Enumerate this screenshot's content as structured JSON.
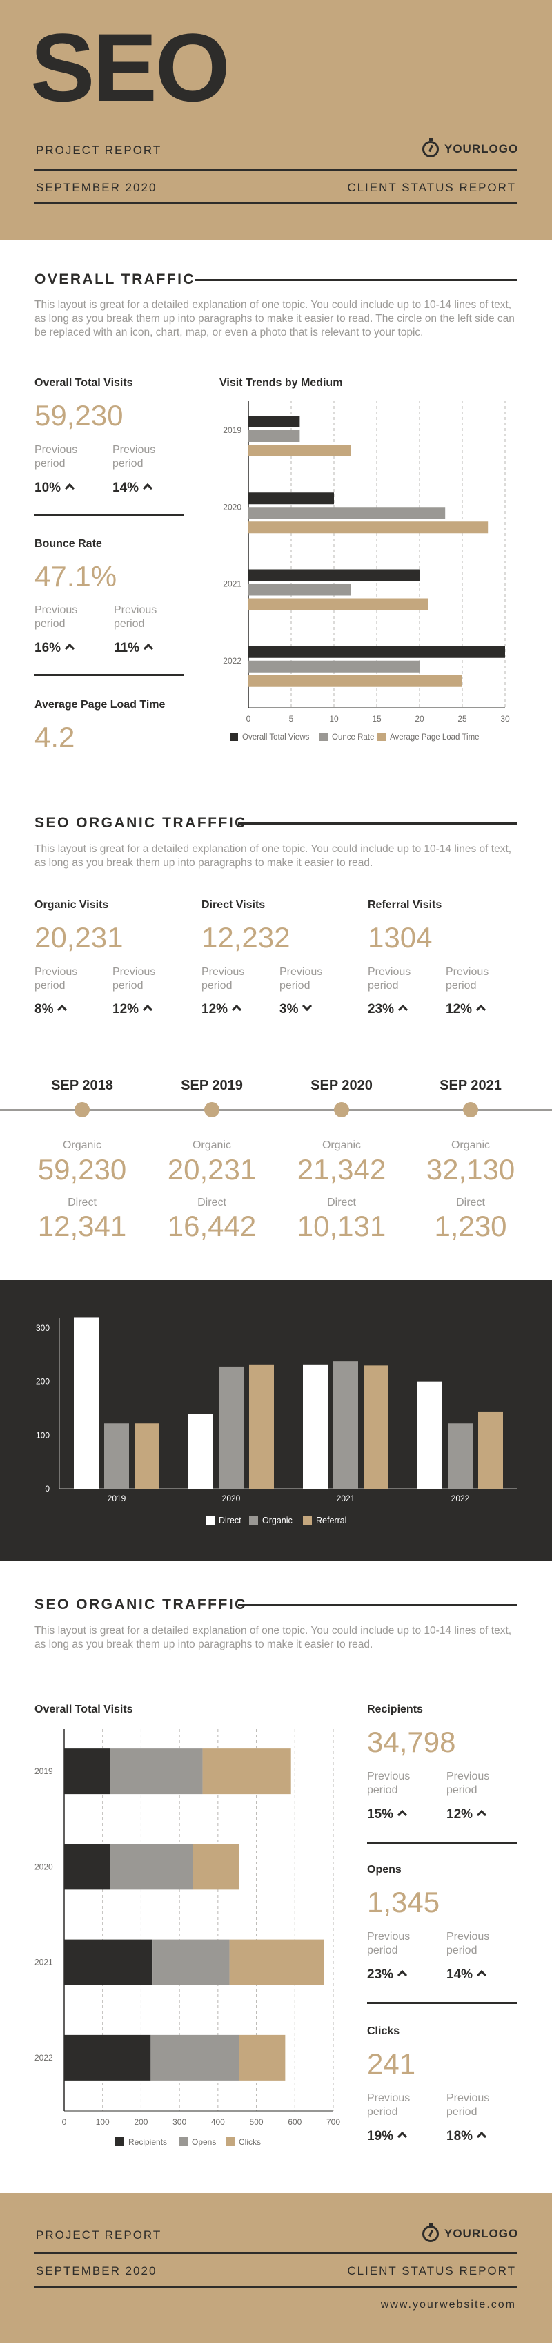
{
  "header": {
    "title": "SEO",
    "project_report": "PROJECT REPORT",
    "logo": "YOURLOGO",
    "date": "SEPTEMBER 2020",
    "client_report": "CLIENT STATUS REPORT"
  },
  "section1": {
    "title": "OVERALL TRAFFIC",
    "description": "This layout is great for a detailed explanation of one topic. You could include up to 10-14 lines of text, as long as you break them up into paragraphs to make it easier to read. The circle on the left side can be replaced with an icon, chart, map, or even a photo that is relevant to your topic.",
    "total_visits": {
      "label": "Overall Total Visits",
      "value": "59,230",
      "prev1": "Previous period",
      "pct1": "10%",
      "prev2": "Previous period",
      "pct2": "14%"
    },
    "bounce_rate": {
      "label": "Bounce Rate",
      "value": "47.1%",
      "prev1": "Previous period",
      "pct1": "16%",
      "prev2": "Previous period",
      "pct2": "11%"
    },
    "load_time": {
      "label": "Average Page Load Time",
      "value": "4.2"
    },
    "chart_title": "Visit Trends by Medium"
  },
  "section2": {
    "title": "SEO ORGANIC TRAFFFIC",
    "description": "This layout is great for a detailed explanation of one topic. You could include up to 10-14 lines of text, as long as you break them up into paragraphs to make it easier to read.",
    "cards": [
      {
        "label": "Organic Visits",
        "value": "20,231",
        "prev1": "Previous period",
        "pct1": "8%",
        "dir1": "up",
        "prev2": "Previous period",
        "pct2": "12%",
        "dir2": "up"
      },
      {
        "label": "Direct Visits",
        "value": "12,232",
        "prev1": "Previous period",
        "pct1": "12%",
        "dir1": "up",
        "prev2": "Previous period",
        "pct2": "3%",
        "dir2": "down"
      },
      {
        "label": "Referral Visits",
        "value": "1304",
        "prev1": "Previous period",
        "pct1": "23%",
        "dir1": "up",
        "prev2": "Previous period",
        "pct2": "12%",
        "dir2": "up"
      }
    ]
  },
  "timeline": [
    {
      "date": "SEP 2018",
      "organic_label": "Organic",
      "organic": "59,230",
      "direct_label": "Direct",
      "direct": "12,341"
    },
    {
      "date": "SEP 2019",
      "organic_label": "Organic",
      "organic": "20,231",
      "direct_label": "Direct",
      "direct": "16,442"
    },
    {
      "date": "SEP 2020",
      "organic_label": "Organic",
      "organic": "21,342",
      "direct_label": "Direct",
      "direct": "10,131"
    },
    {
      "date": "SEP 2021",
      "organic_label": "Organic",
      "organic": "32,130",
      "direct_label": "Direct",
      "direct": "1,230"
    }
  ],
  "section3": {
    "title": "SEO ORGANIC TRAFFFIC",
    "description": "This layout is great for a detailed explanation of one topic. You could include up to 10-14 lines of text, as long as you break them up into paragraphs to make it easier to read.",
    "chart_title": "Overall Total Visits",
    "recipients": {
      "label": "Recipients",
      "value": "34,798",
      "prev1": "Previous period",
      "pct1": "15%",
      "prev2": "Previous period",
      "pct2": "12%"
    },
    "opens": {
      "label": "Opens",
      "value": "1,345",
      "prev1": "Previous period",
      "pct1": "23%",
      "prev2": "Previous period",
      "pct2": "14%"
    },
    "clicks": {
      "label": "Clicks",
      "value": "241",
      "prev1": "Previous period",
      "pct1": "19%",
      "prev2": "Previous period",
      "pct2": "18%"
    }
  },
  "footer": {
    "project_report": "PROJECT REPORT",
    "logo": "YOURLOGO",
    "date": "SEPTEMBER 2020",
    "client_report": "CLIENT STATUS REPORT",
    "website": "www.yourwebsite.com"
  },
  "colors": {
    "dark": "#2d2c2a",
    "grey": "#9a9894",
    "tan": "#c4a77e",
    "white": "#ffffff"
  },
  "chart_data": [
    {
      "type": "bar",
      "orientation": "horizontal",
      "title": "Visit Trends by Medium",
      "categories": [
        "2019",
        "2020",
        "2021",
        "2022"
      ],
      "series": [
        {
          "name": "Overall Total Views",
          "values": [
            6,
            10,
            20,
            30
          ]
        },
        {
          "name": "Ounce Rate",
          "values": [
            6,
            23,
            12,
            20
          ]
        },
        {
          "name": "Average Page Load Time",
          "values": [
            12,
            28,
            21,
            25
          ]
        }
      ],
      "xlim": [
        0,
        30
      ],
      "xticks": [
        0,
        5,
        10,
        15,
        20,
        25,
        30
      ],
      "legend": "bottom",
      "grid": "vertical dashed"
    },
    {
      "type": "bar",
      "categories": [
        "2019",
        "2020",
        "2021",
        "2022"
      ],
      "series": [
        {
          "name": "Direct",
          "values": [
            320,
            140,
            232,
            200
          ]
        },
        {
          "name": "Organic",
          "values": [
            122,
            228,
            238,
            122
          ]
        },
        {
          "name": "Referral",
          "values": [
            122,
            232,
            230,
            143
          ]
        }
      ],
      "ylim": [
        0,
        300
      ],
      "yticks": [
        0,
        100,
        200,
        300
      ],
      "legend": "bottom"
    },
    {
      "type": "bar",
      "orientation": "horizontal",
      "stacked": true,
      "title": "Overall Total Visits",
      "categories": [
        "2019",
        "2020",
        "2021",
        "2022"
      ],
      "series": [
        {
          "name": "Recipients",
          "values": [
            120,
            120,
            230,
            225
          ]
        },
        {
          "name": "Opens",
          "values": [
            240,
            215,
            200,
            230
          ]
        },
        {
          "name": "Clicks",
          "values": [
            230,
            120,
            245,
            120
          ]
        }
      ],
      "xlim": [
        0,
        700
      ],
      "xticks": [
        0,
        100,
        200,
        300,
        400,
        500,
        600,
        700
      ],
      "legend": "bottom",
      "grid": "vertical dashed"
    }
  ]
}
